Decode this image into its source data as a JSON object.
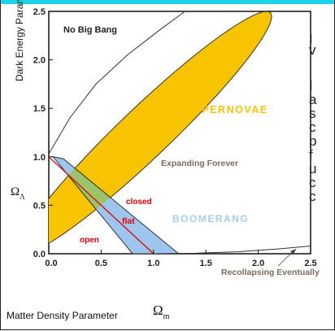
{
  "chart_data": {
    "type": "area",
    "xlim": [
      0,
      2.5
    ],
    "ylim": [
      0,
      2.5
    ],
    "x_ticks": [
      "0.0",
      "0.5",
      "1.0",
      "1.5",
      "2.0",
      "2.5"
    ],
    "y_ticks": [
      "0.0",
      "0.5",
      "1.0",
      "1.5",
      "2.0",
      "2.5"
    ],
    "xlabel": "Matter Density Parameter",
    "xlabel_symbol": "Ω",
    "xlabel_subscript": "m",
    "ylabel": "Dark Energy Parameter",
    "ylabel_symbol": "Ω",
    "ylabel_subscript": "Λ",
    "annotations": {
      "no_big_bang": "No Big Bang",
      "supernovae": "SUPERNOVAE",
      "expanding": "Expanding Forever",
      "boomerang": "BOOMERANG",
      "closed": "closed",
      "flat": "flat",
      "open": "open",
      "recollapsing": "Recollapsing Eventually"
    },
    "regions": [
      {
        "name": "SUPERNOVAE",
        "color": "#f8c400",
        "shape": "ellipse",
        "center": [
          0.92,
          1.25
        ],
        "semi_axes": [
          1.72,
          0.25
        ],
        "angle_deg": 46
      },
      {
        "name": "BOOMERANG",
        "color": "#9dc6ef",
        "polygon": [
          [
            0.04,
            1.0
          ],
          [
            0.14,
            0.98
          ],
          [
            1.24,
            0.0
          ],
          [
            0.8,
            0.0
          ]
        ]
      }
    ],
    "overlap_color": "#9bc46a",
    "boundary_curves": [
      {
        "name": "no-big-bang-boundary",
        "points": [
          [
            0.0,
            1.03
          ],
          [
            0.2,
            1.4
          ],
          [
            0.45,
            1.75
          ],
          [
            0.75,
            2.05
          ],
          [
            1.05,
            2.3
          ],
          [
            1.3,
            2.5
          ]
        ]
      },
      {
        "name": "flat-line",
        "color": "#e60000",
        "points": [
          [
            0.0,
            1.0
          ],
          [
            1.0,
            0.0
          ]
        ]
      },
      {
        "name": "recollapse-boundary",
        "points": [
          [
            1.0,
            0.0
          ],
          [
            1.4,
            0.005
          ],
          [
            1.8,
            0.02
          ],
          [
            2.2,
            0.05
          ],
          [
            2.5,
            0.08
          ]
        ]
      }
    ],
    "grid": false,
    "legend": "none"
  },
  "side_text_letters": [
    "I",
    "v",
    "I",
    "a",
    "s",
    "c",
    "p",
    "f",
    "u",
    "c",
    "c"
  ]
}
